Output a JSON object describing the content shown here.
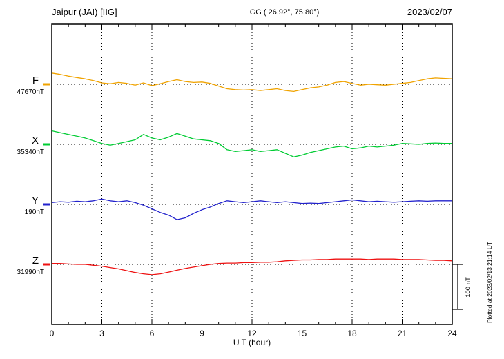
{
  "header": {
    "station": "Jaipur (JAI)  [IIG]",
    "coords": "GG ( 26.92°,  75.80°)",
    "date": "2023/02/07"
  },
  "axis": {
    "xlabel": "U T (hour)"
  },
  "scale_bar": {
    "label": "100 nT",
    "nT": 100
  },
  "side_note": "Plotted at 2023/02/13 21:14 UT",
  "chart_data": {
    "type": "line",
    "title": "Jaipur (JAI) [IIG] magnetogram for 2023/02/07",
    "xlabel": "U T (hour)",
    "xlim": [
      0,
      24
    ],
    "x_ticks": [
      0,
      3,
      6,
      9,
      12,
      15,
      18,
      21,
      24
    ],
    "x_step_hours": 0.5,
    "grid": "dotted vertical lines every 3 h; dotted horizontal baseline per trace",
    "scale_bar_nT": 100,
    "series": [
      {
        "name": "F",
        "baseline_label": "47670nT",
        "baseline_nT": 47670,
        "color": "#f0a300",
        "offsets_nT": [
          25,
          22,
          18,
          15,
          12,
          8,
          3,
          1,
          4,
          2,
          -2,
          3,
          -3,
          1,
          6,
          10,
          6,
          4,
          5,
          2,
          -4,
          -10,
          -12,
          -13,
          -12,
          -14,
          -12,
          -10,
          -14,
          -16,
          -12,
          -8,
          -6,
          -2,
          4,
          6,
          2,
          -2,
          0,
          -1,
          -2,
          0,
          2,
          4,
          8,
          12,
          14,
          13,
          12
        ]
      },
      {
        "name": "X",
        "baseline_label": "35340nT",
        "baseline_nT": 35340,
        "color": "#00cc33",
        "offsets_nT": [
          30,
          26,
          22,
          18,
          14,
          8,
          2,
          -2,
          2,
          6,
          10,
          22,
          14,
          10,
          16,
          24,
          18,
          12,
          10,
          8,
          2,
          -12,
          -16,
          -14,
          -12,
          -16,
          -14,
          -12,
          -20,
          -28,
          -24,
          -18,
          -14,
          -10,
          -6,
          -4,
          -10,
          -8,
          -4,
          -6,
          -4,
          -2,
          2,
          1,
          0,
          2,
          3,
          2,
          2
        ]
      },
      {
        "name": "Y",
        "baseline_label": "190nT",
        "baseline_nT": 190,
        "color": "#2222cc",
        "offsets_nT": [
          4,
          6,
          5,
          7,
          6,
          8,
          12,
          8,
          6,
          8,
          4,
          -2,
          -10,
          -18,
          -24,
          -34,
          -30,
          -20,
          -12,
          -6,
          2,
          8,
          6,
          4,
          6,
          8,
          6,
          4,
          6,
          4,
          2,
          3,
          2,
          4,
          6,
          8,
          10,
          8,
          6,
          7,
          6,
          5,
          6,
          7,
          8,
          7,
          8,
          8,
          8
        ]
      },
      {
        "name": "Z",
        "baseline_label": "31990nT",
        "baseline_nT": 31990,
        "color": "#ee1111",
        "offsets_nT": [
          2,
          2,
          1,
          0,
          0,
          -2,
          -4,
          -7,
          -10,
          -14,
          -18,
          -21,
          -23,
          -21,
          -17,
          -13,
          -9,
          -6,
          -3,
          0,
          2,
          3,
          3,
          4,
          4,
          5,
          5,
          6,
          8,
          9,
          10,
          10,
          11,
          11,
          12,
          12,
          12,
          12,
          11,
          12,
          12,
          12,
          11,
          11,
          11,
          10,
          9,
          9,
          8
        ]
      }
    ]
  }
}
